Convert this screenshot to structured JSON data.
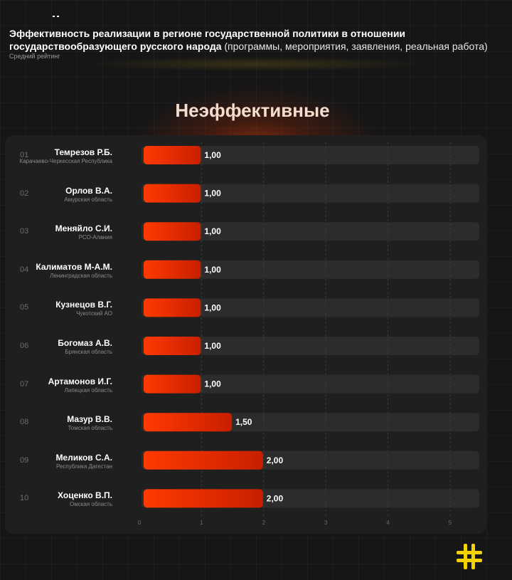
{
  "header": {
    "title_bold": "Эффективность реализации в регионе государственной политики в отношении государствообразующего русского народа",
    "title_light": "(программы, мероприятия, заявления, реальная работа)",
    "subtitle": "Средний рейтинг"
  },
  "section_title": "Неэффективные",
  "chart_data": {
    "type": "bar",
    "orientation": "horizontal",
    "xlim": [
      0,
      5
    ],
    "x_ticks": [
      "0",
      "1",
      "2",
      "3",
      "4",
      "5"
    ],
    "grid": true,
    "rows": [
      {
        "rank": "01",
        "name": "Темрезов Р.Б.",
        "region": "Карачаево-Черкесская Республика",
        "value": 1.0,
        "label": "1,00"
      },
      {
        "rank": "02",
        "name": "Орлов В.А.",
        "region": "Амурская область",
        "value": 1.0,
        "label": "1,00"
      },
      {
        "rank": "03",
        "name": "Меняйло С.И.",
        "region": "РСО-Алания",
        "value": 1.0,
        "label": "1,00"
      },
      {
        "rank": "04",
        "name": "Калиматов М-А.М.",
        "region": "Ленинградская область",
        "value": 1.0,
        "label": "1,00"
      },
      {
        "rank": "05",
        "name": "Кузнецов В.Г.",
        "region": "Чукотский АО",
        "value": 1.0,
        "label": "1,00"
      },
      {
        "rank": "06",
        "name": "Богомаз А.В.",
        "region": "Брянская область",
        "value": 1.0,
        "label": "1,00"
      },
      {
        "rank": "07",
        "name": "Артамонов И.Г.",
        "region": "Липецкая область",
        "value": 1.0,
        "label": "1,00"
      },
      {
        "rank": "08",
        "name": "Мазур В.В.",
        "region": "Томская область",
        "value": 1.5,
        "label": "1,50"
      },
      {
        "rank": "09",
        "name": "Меликов С.А.",
        "region": "Республика Дагестан",
        "value": 2.0,
        "label": "2,00"
      },
      {
        "rank": "10",
        "name": "Хоценко В.П.",
        "region": "Омская область",
        "value": 2.0,
        "label": "2,00"
      }
    ],
    "colors": {
      "bar_start": "#ff3a00",
      "bar_end": "#c81f00",
      "track": "#2c2c2c"
    }
  },
  "logo": {
    "icon": "hash-cross-logo-icon",
    "color": "#f2d300"
  }
}
